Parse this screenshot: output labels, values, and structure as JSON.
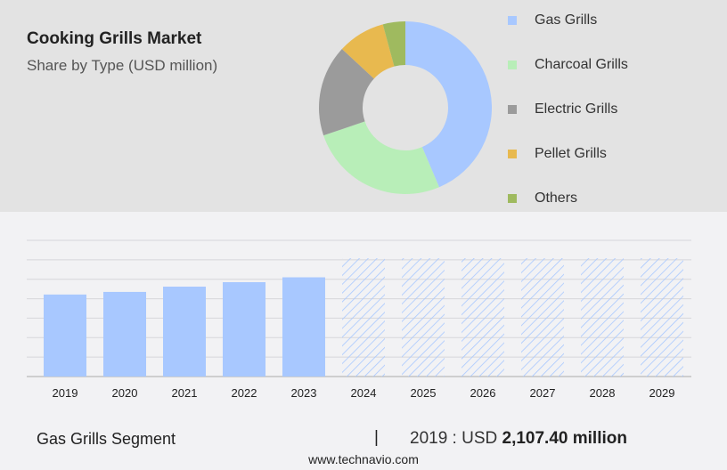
{
  "header": {
    "title": "Cooking Grills Market",
    "subtitle": "Share by Type (USD million)"
  },
  "chart_data": [
    {
      "type": "pie",
      "donut": true,
      "labels": [
        "Gas Grills",
        "Charcoal Grills",
        "Electric Grills",
        "Pellet Grills",
        "Others"
      ],
      "values": [
        43.6,
        26.2,
        17.1,
        8.9,
        4.2
      ],
      "colors": [
        "#a8c8ff",
        "#b8eeb8",
        "#9b9b9b",
        "#e8b94f",
        "#9fba5f"
      ],
      "legend": "right"
    },
    {
      "type": "bar",
      "categories": [
        "2019",
        "2020",
        "2021",
        "2022",
        "2023",
        "2024",
        "2025",
        "2026",
        "2027",
        "2028",
        "2029"
      ],
      "values": [
        2107.4,
        2175,
        2310,
        2425,
        2550,
        null,
        null,
        null,
        null,
        null,
        null
      ],
      "forecast_from": "2024",
      "ylim": [
        0,
        3500
      ],
      "grid": true,
      "color": "#a8c8ff"
    }
  ],
  "footer": {
    "segment": "Gas Grills Segment",
    "separator": "|",
    "year_label": "2019 : USD ",
    "value": "2,107.40 million",
    "site": "www.technavio.com"
  }
}
